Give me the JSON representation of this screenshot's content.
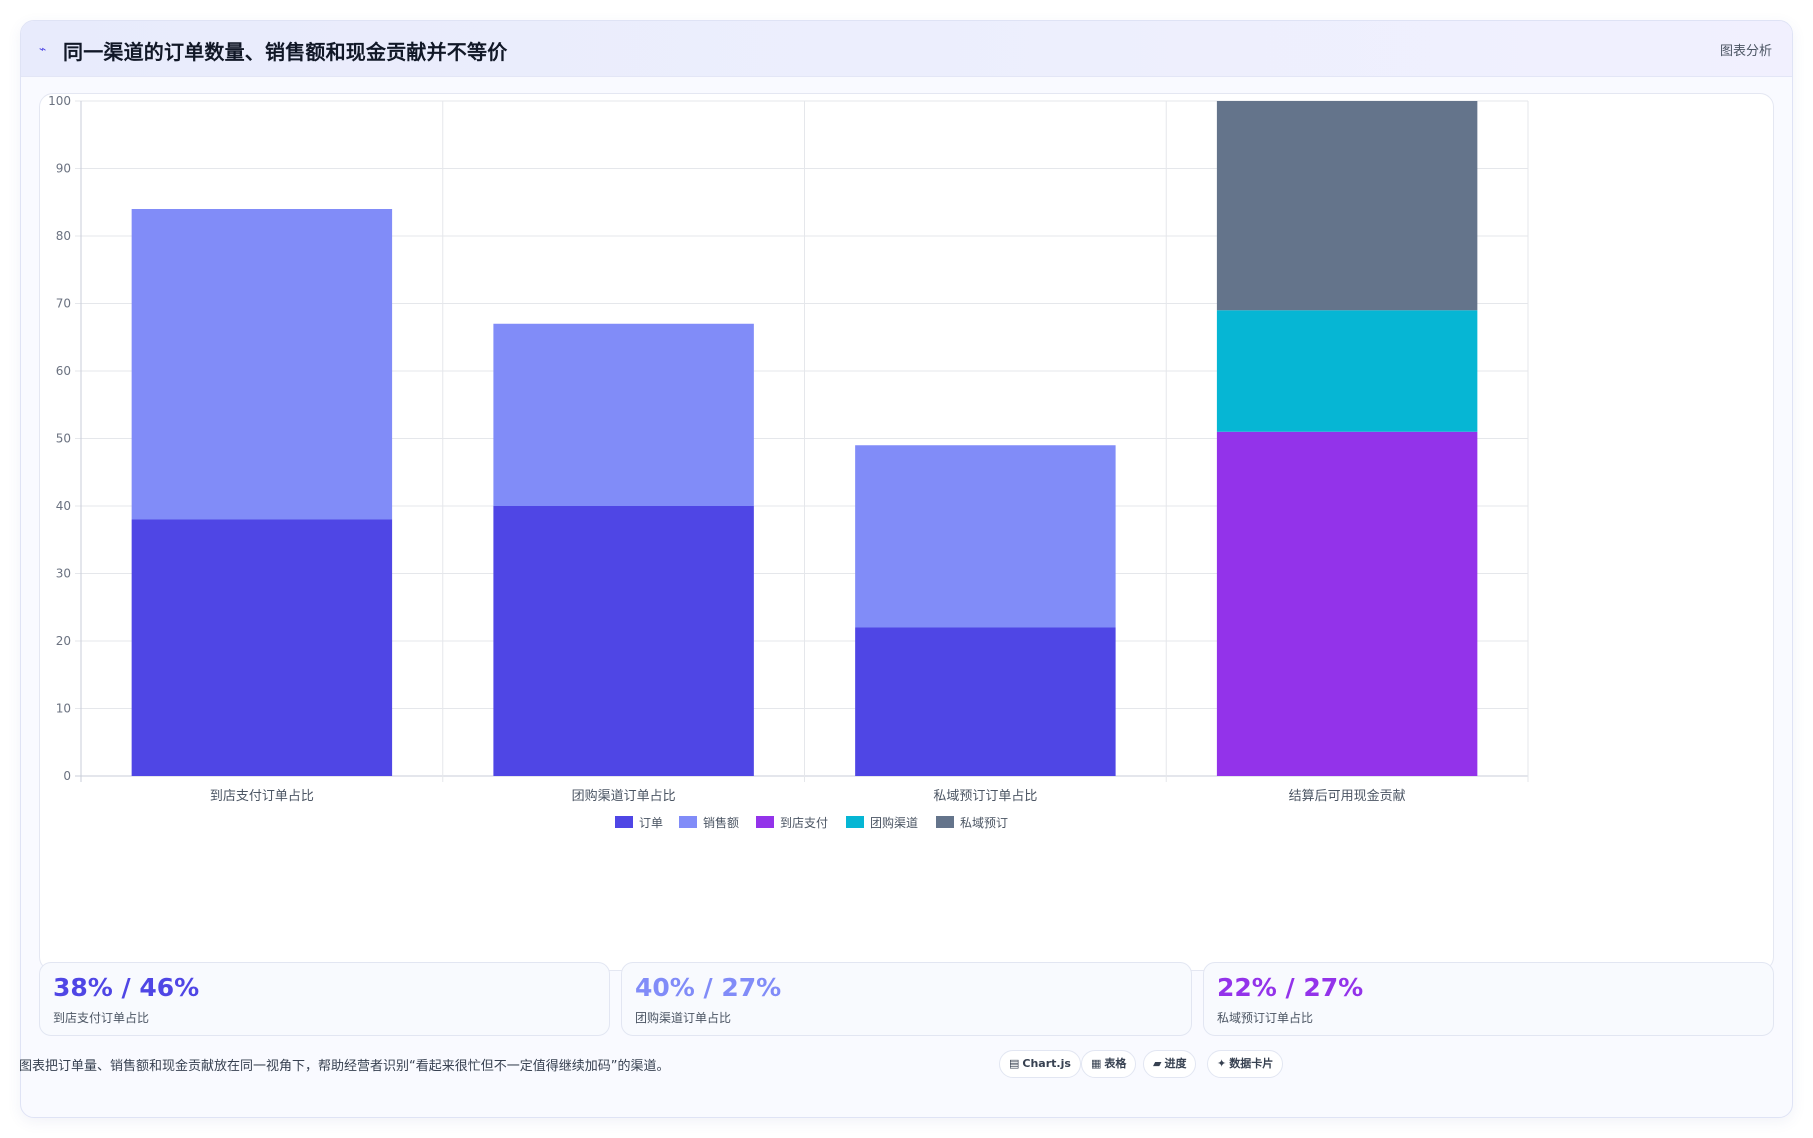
{
  "header": {
    "title": "同一渠道的订单数量、销售额和现金贡献并不等价",
    "icon": "trend-line-icon",
    "action_label": "图表分析"
  },
  "chart_data": {
    "type": "bar",
    "stacked": true,
    "categories": [
      "到店支付订单占比",
      "团购渠道订单占比",
      "私域预订订单占比",
      "结算后可用现金贡献"
    ],
    "series": [
      {
        "name": "订单",
        "color": "#4f46e5",
        "values": [
          38,
          40,
          22,
          0
        ]
      },
      {
        "name": "销售额",
        "color": "#818cf8",
        "values": [
          46,
          27,
          27,
          0
        ]
      },
      {
        "name": "到店支付",
        "color": "#9333ea",
        "values": [
          0,
          0,
          0,
          51
        ]
      },
      {
        "name": "团购渠道",
        "color": "#06b6d4",
        "values": [
          0,
          0,
          0,
          18
        ]
      },
      {
        "name": "私域预订",
        "color": "#64748b",
        "values": [
          0,
          0,
          0,
          31
        ]
      }
    ],
    "ylim": [
      0,
      100
    ],
    "yticks": [
      "0",
      "10",
      "20",
      "30",
      "40",
      "50",
      "60",
      "70",
      "80",
      "90",
      "100"
    ],
    "grid": true,
    "legend_position": "bottom"
  },
  "stats": [
    {
      "value": "38% / 46%",
      "label": "到店支付订单占比",
      "color": "#4f46e5"
    },
    {
      "value": "40% / 27%",
      "label": "团购渠道订单占比",
      "color": "#818cf8"
    },
    {
      "value": "22% / 27%",
      "label": "私域预订订单占比",
      "color": "#9333ea"
    }
  ],
  "footnote": "图表把订单量、销售额和现金贡献放在同一视角下，帮助经营者识别“看起来很忙但不一定值得继续加码”的渠道。",
  "chips": [
    {
      "icon": "chart-icon",
      "glyph": "▤",
      "label": "Chart.js"
    },
    {
      "icon": "table-icon",
      "glyph": "▦",
      "label": "表格"
    },
    {
      "icon": "progress-icon",
      "glyph": "▰",
      "label": "进度"
    },
    {
      "icon": "sparkle-icon",
      "glyph": "✦",
      "label": "数据卡片"
    }
  ]
}
